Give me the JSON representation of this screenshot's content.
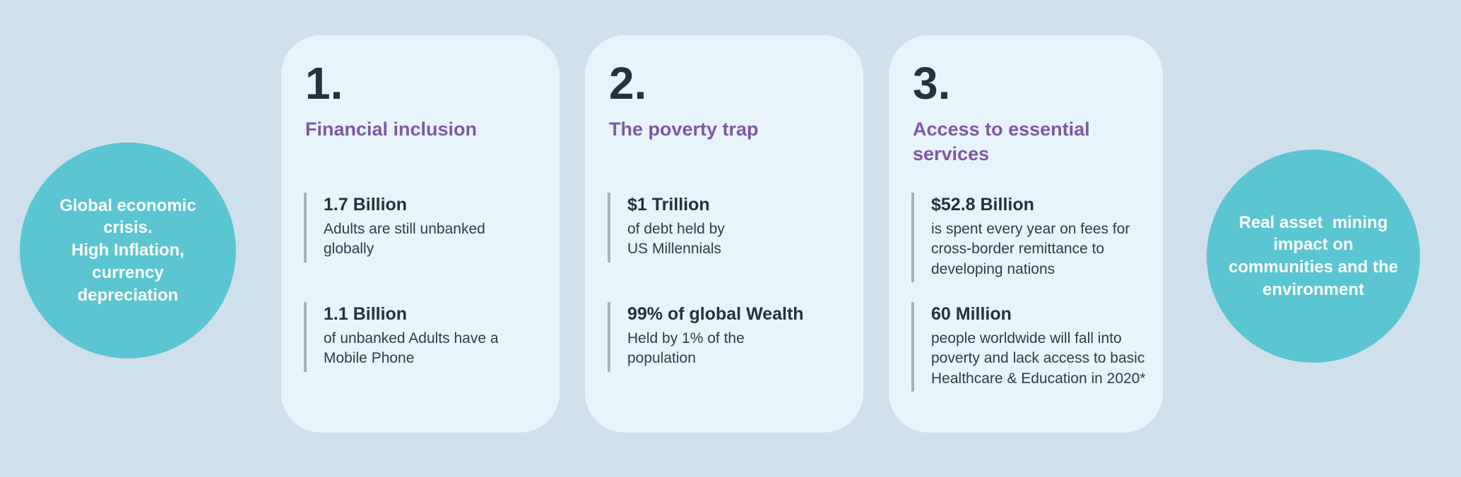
{
  "colors": {
    "background": "#cfe0eb",
    "card_background": "#e8f4fb",
    "bubble_teal": "#5bc6d1",
    "title_purple": "#7e58a6",
    "text_dark": "#22323e",
    "text_body": "#2c3d49",
    "stat_bar_gray": "#a8b0b6",
    "bubble_text": "#ffffff"
  },
  "left_bubble": {
    "text": "Global economic\ncrisis.\nHigh Inflation,\ncurrency\ndepreciation"
  },
  "right_bubble": {
    "text": "Real asset  mining\nimpact on\ncommunities and the\nenvironment"
  },
  "cards": [
    {
      "number": "1.",
      "title": "Financial inclusion",
      "stats": [
        {
          "value": "1.7 Billion",
          "description": "Adults are still unbanked\nglobally"
        },
        {
          "value": "1.1 Billion",
          "description": "of unbanked Adults have a\nMobile Phone"
        }
      ]
    },
    {
      "number": "2.",
      "title": "The poverty trap",
      "stats": [
        {
          "value": "$1 Trillion",
          "description": "of debt held by\nUS Millennials"
        },
        {
          "value": "99% of global Wealth",
          "description": "Held by 1% of the\npopulation"
        }
      ]
    },
    {
      "number": "3.",
      "title": "Access to essential\nservices",
      "stats": [
        {
          "value": "$52.8 Billion",
          "description": "is spent every year on fees for\ncross-border remittance to\ndeveloping nations"
        },
        {
          "value": "60 Million",
          "description": "people worldwide will fall into\npoverty and lack access to basic\nHealthcare & Education in 2020*"
        }
      ]
    }
  ]
}
